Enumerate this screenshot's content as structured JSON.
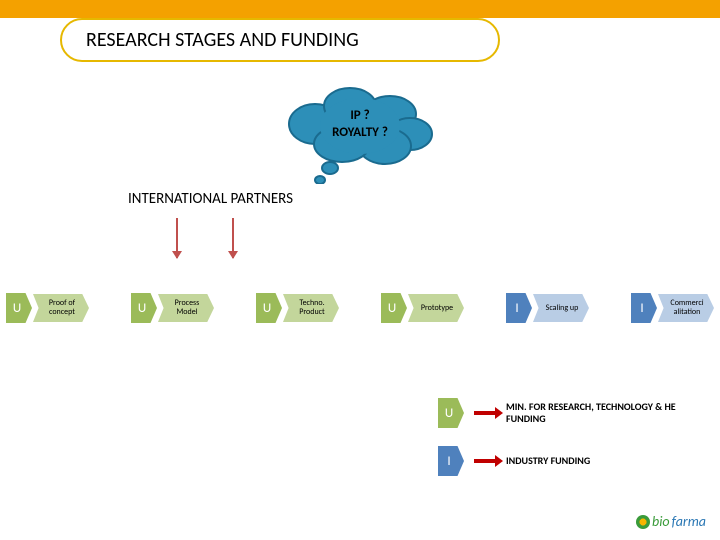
{
  "title": "RESEARCH STAGES AND FUNDING",
  "title_border_color": "#e6b800",
  "top_bar_color": "#f4a100",
  "top_bar_height": 18,
  "cloud": {
    "line1": "IP ?",
    "line2": "ROYALTY ?",
    "fill": "#2d8fb8",
    "stroke": "#1a6b8f"
  },
  "partners_label": "INTERNATIONAL PARTNERS",
  "arrows_down": {
    "color": "#c0504d",
    "positions": [
      176,
      232
    ]
  },
  "stage_colors": {
    "U_fill": "#9bbb59",
    "U_arrow": "#c3d69b",
    "I_fill": "#4f81bd",
    "I_arrow": "#b9cde5"
  },
  "stages": [
    {
      "badge": "U",
      "label": "Proof of concept"
    },
    {
      "badge": "U",
      "label": "Process Model"
    },
    {
      "badge": "U",
      "label": "Techno. Product"
    },
    {
      "badge": "U",
      "label": "Prototype"
    },
    {
      "badge": "I",
      "label": "Scaling up"
    },
    {
      "badge": "I",
      "label": "Commerci alitation"
    }
  ],
  "legend": [
    {
      "badge": "U",
      "text": "MIN. FOR RESEARCH, TECHNOLOGY & HE FUNDING"
    },
    {
      "badge": "I",
      "text": "INDUSTRY FUNDING"
    }
  ],
  "logo": {
    "text": "biofarma",
    "color_bio": "#3a9b3a",
    "color_farma": "#2a77b4"
  }
}
